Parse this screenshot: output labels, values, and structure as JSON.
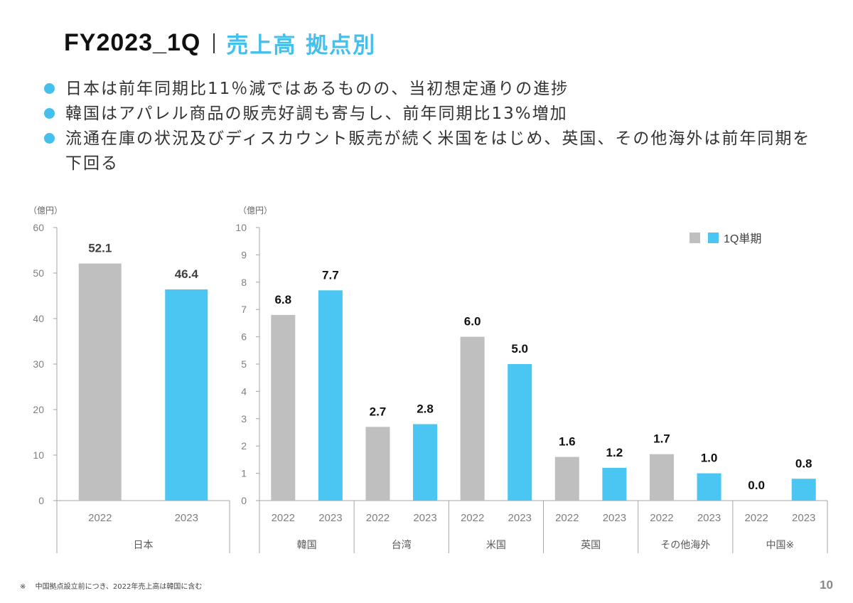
{
  "header": {
    "title": "FY2023_1Q",
    "subtitle": "売上高 拠点別"
  },
  "bullets": [
    "日本は前年同期比11％減ではあるものの、当初想定通りの進捗",
    "韓国はアパレル商品の販売好調も寄与し、前年同期比13%増加",
    "流通在庫の状況及びディスカウント販売が続く米国をはじめ、英国、その他海外は前年同期を下回る"
  ],
  "colors": {
    "accent": "#45c0ec",
    "bar_2022": "#bfbfbf",
    "bar_2023": "#4bc5f2",
    "axis": "#a6a6a6",
    "tick_text": "#7f7f7f"
  },
  "chart_data": [
    {
      "type": "bar",
      "title": "日本",
      "unit_label": "（億円）",
      "ylim": [
        0,
        60
      ],
      "yticks": [
        0,
        10,
        20,
        30,
        40,
        50,
        60
      ],
      "groups": [
        {
          "name": "日本",
          "categories": [
            "2022",
            "2023"
          ],
          "values": [
            52.1,
            46.4
          ],
          "labels": [
            "52.1",
            "46.4"
          ]
        }
      ],
      "grid": false
    },
    {
      "type": "bar",
      "title": "海外拠点",
      "unit_label": "（億円）",
      "ylim": [
        0,
        10
      ],
      "yticks": [
        0,
        1,
        2,
        3,
        4,
        5,
        6,
        7,
        8,
        9,
        10
      ],
      "legend": {
        "entries": [
          "",
          "1Q単期"
        ],
        "placement": "top-right"
      },
      "groups": [
        {
          "name": "韓国",
          "categories": [
            "2022",
            "2023"
          ],
          "values": [
            6.8,
            7.7
          ],
          "labels": [
            "6.8",
            "7.7"
          ]
        },
        {
          "name": "台湾",
          "categories": [
            "2022",
            "2023"
          ],
          "values": [
            2.7,
            2.8
          ],
          "labels": [
            "2.7",
            "2.8"
          ]
        },
        {
          "name": "米国",
          "categories": [
            "2022",
            "2023"
          ],
          "values": [
            6.0,
            5.0
          ],
          "labels": [
            "6.0",
            "5.0"
          ]
        },
        {
          "name": "英国",
          "categories": [
            "2022",
            "2023"
          ],
          "values": [
            1.6,
            1.2
          ],
          "labels": [
            "1.6",
            "1.2"
          ]
        },
        {
          "name": "その他海外",
          "categories": [
            "2022",
            "2023"
          ],
          "values": [
            1.7,
            1.0
          ],
          "labels": [
            "1.7",
            "1.0"
          ]
        },
        {
          "name": "中国※",
          "categories": [
            "2022",
            "2023"
          ],
          "values": [
            0.0,
            0.8
          ],
          "labels": [
            "0.0",
            "0.8"
          ]
        }
      ],
      "grid": false
    }
  ],
  "footnote": {
    "mark": "※",
    "text": "中国拠点設立前につき、2022年売上高は韓国に含む"
  },
  "page_number": "10"
}
